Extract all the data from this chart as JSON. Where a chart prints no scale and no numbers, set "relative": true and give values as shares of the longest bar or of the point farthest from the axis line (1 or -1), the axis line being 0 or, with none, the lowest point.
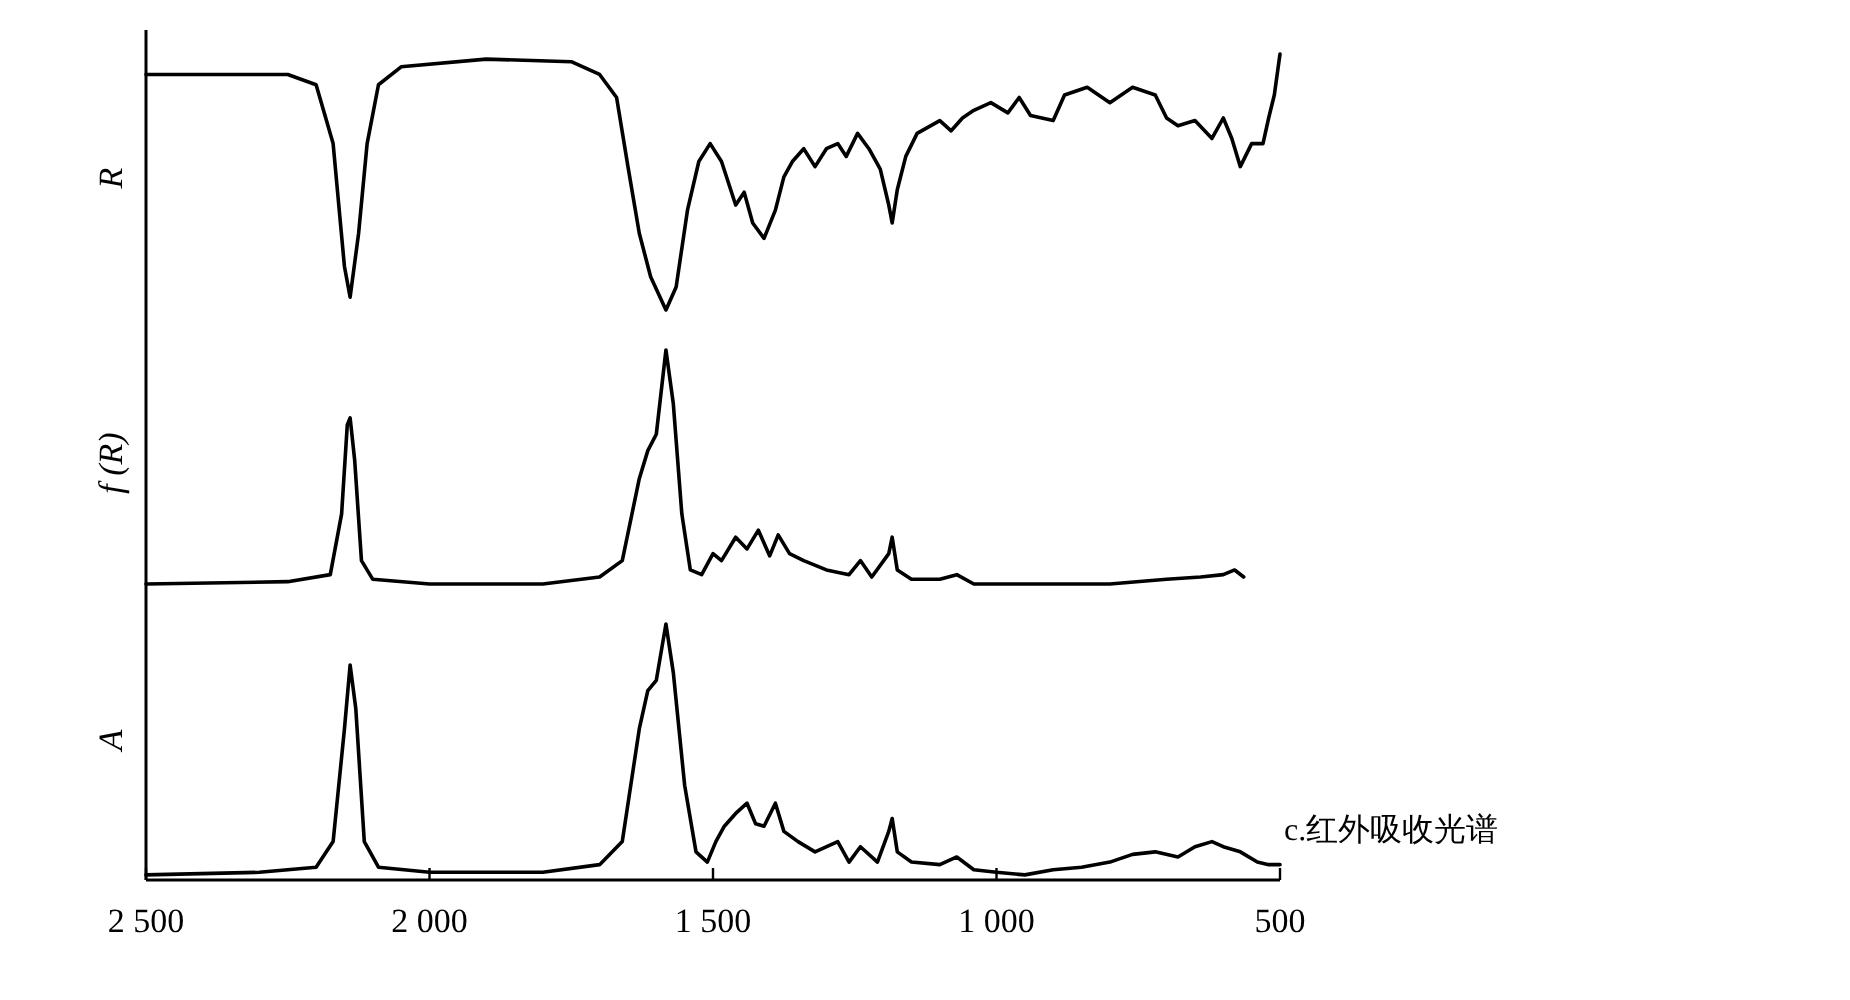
{
  "chart_data": [
    {
      "type": "line",
      "relative": true,
      "ylabel": "R",
      "xlim": [
        2500,
        500
      ],
      "tick_labels": false,
      "series": [
        {
          "color": "#000000",
          "x": [
            2500,
            2250,
            2200,
            2170,
            2150,
            2140,
            2125,
            2110,
            2090,
            2050,
            1900,
            1750,
            1700,
            1670,
            1650,
            1630,
            1610,
            1583,
            1565,
            1545,
            1525,
            1505,
            1485,
            1460,
            1445,
            1430,
            1410,
            1390,
            1375,
            1360,
            1340,
            1320,
            1300,
            1280,
            1265,
            1245,
            1225,
            1205,
            1190,
            1184,
            1175,
            1160,
            1140,
            1100,
            1080,
            1060,
            1040,
            1010,
            980,
            960,
            940,
            900,
            880,
            840,
            800,
            760,
            720,
            700,
            680,
            650,
            620,
            600,
            585,
            570,
            550,
            530,
            520,
            510,
            500
          ],
          "values": [
            0.92,
            0.92,
            0.88,
            0.65,
            0.17,
            0.05,
            0.3,
            0.65,
            0.88,
            0.95,
            0.98,
            0.97,
            0.92,
            0.83,
            0.56,
            0.3,
            0.13,
            0,
            0.09,
            0.39,
            0.58,
            0.65,
            0.58,
            0.41,
            0.46,
            0.34,
            0.28,
            0.39,
            0.52,
            0.58,
            0.63,
            0.56,
            0.63,
            0.65,
            0.6,
            0.69,
            0.63,
            0.55,
            0.41,
            0.34,
            0.47,
            0.6,
            0.69,
            0.74,
            0.7,
            0.75,
            0.78,
            0.81,
            0.77,
            0.83,
            0.76,
            0.74,
            0.84,
            0.87,
            0.81,
            0.87,
            0.84,
            0.75,
            0.72,
            0.74,
            0.67,
            0.75,
            0.67,
            0.56,
            0.65,
            0.65,
            0.75,
            0.84,
            1.0
          ]
        }
      ]
    },
    {
      "type": "line",
      "relative": true,
      "ylabel": "f (R)",
      "xlim": [
        2500,
        500
      ],
      "tick_labels": false,
      "series": [
        {
          "color": "#000000",
          "x": [
            2500,
            2250,
            2175,
            2155,
            2145,
            2140,
            2132,
            2120,
            2100,
            2000,
            1800,
            1700,
            1660,
            1630,
            1615,
            1600,
            1583,
            1570,
            1555,
            1540,
            1520,
            1500,
            1485,
            1460,
            1440,
            1420,
            1400,
            1385,
            1365,
            1340,
            1300,
            1260,
            1240,
            1220,
            1190,
            1184,
            1175,
            1150,
            1100,
            1070,
            1040,
            1000,
            950,
            900,
            800,
            700,
            640,
            600,
            580,
            564
          ],
          "values": [
            0,
            0.01,
            0.04,
            0.3,
            0.68,
            0.71,
            0.53,
            0.1,
            0.02,
            0,
            0,
            0.03,
            0.1,
            0.45,
            0.57,
            0.64,
            1.0,
            0.77,
            0.3,
            0.06,
            0.04,
            0.13,
            0.1,
            0.2,
            0.15,
            0.23,
            0.12,
            0.21,
            0.13,
            0.1,
            0.06,
            0.04,
            0.1,
            0.03,
            0.13,
            0.2,
            0.06,
            0.02,
            0.02,
            0.04,
            0,
            0,
            0,
            0,
            0,
            0.02,
            0.03,
            0.04,
            0.06,
            0.03
          ]
        }
      ]
    },
    {
      "type": "line",
      "relative": true,
      "ylabel": "A",
      "xlim": [
        2500,
        500
      ],
      "tick_labels": "x",
      "xticks": [
        {
          "value": 2500,
          "label": "2 500"
        },
        {
          "value": 2000,
          "label": "2 000"
        },
        {
          "value": 1500,
          "label": "1 500"
        },
        {
          "value": 1000,
          "label": "1 000"
        },
        500
      ],
      "annotations": [
        "c.红外吸收光谱"
      ],
      "series": [
        {
          "color": "#000000",
          "x": [
            2500,
            2300,
            2200,
            2170,
            2150,
            2140,
            2130,
            2115,
            2090,
            2000,
            1800,
            1700,
            1660,
            1630,
            1615,
            1600,
            1583,
            1570,
            1550,
            1530,
            1510,
            1495,
            1480,
            1460,
            1440,
            1425,
            1410,
            1390,
            1375,
            1350,
            1320,
            1280,
            1260,
            1240,
            1210,
            1190,
            1184,
            1175,
            1150,
            1100,
            1070,
            1040,
            1000,
            950,
            900,
            850,
            800,
            760,
            720,
            680,
            650,
            620,
            600,
            570,
            540,
            520,
            500
          ],
          "values": [
            0.02,
            0.03,
            0.05,
            0.15,
            0.59,
            0.84,
            0.67,
            0.15,
            0.05,
            0.03,
            0.03,
            0.06,
            0.15,
            0.59,
            0.74,
            0.78,
            1.0,
            0.81,
            0.37,
            0.11,
            0.07,
            0.15,
            0.21,
            0.26,
            0.3,
            0.22,
            0.21,
            0.3,
            0.19,
            0.15,
            0.11,
            0.15,
            0.07,
            0.13,
            0.07,
            0.19,
            0.24,
            0.11,
            0.07,
            0.06,
            0.09,
            0.04,
            0.03,
            0.02,
            0.04,
            0.05,
            0.07,
            0.1,
            0.11,
            0.09,
            0.13,
            0.15,
            0.13,
            0.11,
            0.07,
            0.06,
            0.06
          ]
        }
      ]
    }
  ]
}
